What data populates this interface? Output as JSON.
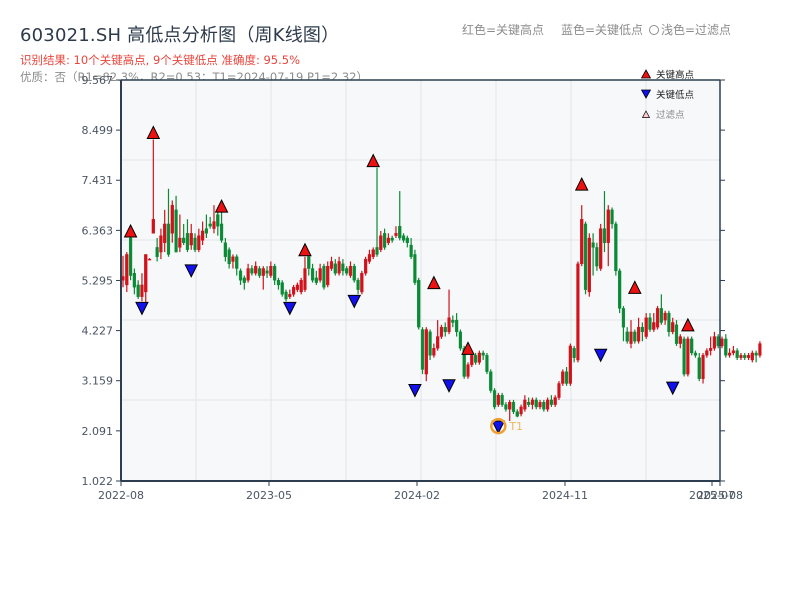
{
  "header": {
    "title": "603021.SH 高低点分析图（周K线图）",
    "result_line": "识别结果: 10个关键高点, 9个关键低点  准确度: 95.5%",
    "quality_line": "优质：否（R1=82.3%，R2=0.53；T1=2024-07-19 P1=2.32）",
    "legend_red": "红色=关键高点",
    "legend_blue": "蓝色=关键低点",
    "legend_light": "浅色=过滤点"
  },
  "legend": {
    "items": [
      {
        "label": "关键高点",
        "marker": "triangle-up",
        "color": "#ee1111"
      },
      {
        "label": "关键低点",
        "marker": "triangle-down",
        "color": "#1111ee"
      },
      {
        "label": "过滤点",
        "marker": "triangle-up-light",
        "color": "#ffcccc"
      }
    ]
  },
  "colors": {
    "up": "#d0121b",
    "down": "#0a8a35",
    "high_marker": "#ee1111",
    "low_marker": "#1111ee",
    "t1_circle": "#f0a030",
    "axis": "#2d3e50",
    "grid": "#e2e5ea",
    "plot_bg": "#f7f8fa"
  },
  "chart_data": {
    "type": "candlestick",
    "title": "603021.SH 高低点分析图（周K线图）",
    "xlabel": "",
    "ylabel": "",
    "ylim": [
      1.022,
      9.567
    ],
    "yticks": [
      "9.567",
      "8.499",
      "7.431",
      "6.363",
      "5.295",
      "4.227",
      "3.159",
      "2.091",
      "1.022"
    ],
    "xticks": [
      {
        "label": "2022-08",
        "week": 0
      },
      {
        "label": "2023-05",
        "week": 39
      },
      {
        "label": "2024-02",
        "week": 78
      },
      {
        "label": "2024-11",
        "week": 117
      },
      {
        "label": "2025-07",
        "week": 156
      },
      {
        "label": "2025-08",
        "week": 158
      }
    ],
    "grid": true,
    "legend_position": "upper right",
    "candles": [
      [
        5.3,
        5.38,
        5.82,
        5.15
      ],
      [
        5.2,
        5.85,
        5.9,
        5.05
      ],
      [
        6.2,
        5.4,
        6.3,
        5.3
      ],
      [
        5.45,
        5.15,
        5.55,
        5.0
      ],
      [
        5.2,
        4.95,
        5.3,
        4.9
      ],
      [
        4.95,
        5.2,
        5.45,
        4.85
      ],
      [
        5.05,
        5.85,
        5.85,
        4.8
      ],
      [
        5.75,
        5.75,
        5.77,
        5.73
      ],
      [
        6.3,
        6.6,
        8.3,
        6.3
      ],
      [
        6.0,
        5.8,
        6.2,
        5.7
      ],
      [
        5.9,
        6.25,
        6.4,
        5.75
      ],
      [
        6.1,
        6.5,
        6.8,
        5.9
      ],
      [
        6.5,
        5.85,
        7.25,
        5.8
      ],
      [
        6.3,
        6.9,
        7.0,
        6.1
      ],
      [
        6.8,
        5.9,
        7.1,
        5.9
      ],
      [
        6.0,
        6.2,
        6.7,
        5.9
      ],
      [
        6.2,
        6.1,
        6.5,
        6.05
      ],
      [
        6.3,
        5.95,
        6.6,
        5.9
      ],
      [
        6.05,
        6.3,
        6.5,
        5.95
      ],
      [
        6.2,
        5.95,
        6.3,
        5.9
      ],
      [
        5.95,
        6.25,
        6.4,
        5.9
      ],
      [
        6.15,
        6.35,
        6.55,
        6.05
      ],
      [
        6.4,
        6.3,
        6.7,
        6.2
      ],
      [
        6.5,
        6.45,
        6.65,
        6.4
      ],
      [
        6.4,
        6.55,
        6.9,
        6.3
      ],
      [
        6.7,
        6.45,
        6.85,
        6.25
      ],
      [
        6.5,
        6.15,
        6.75,
        6.1
      ],
      [
        6.1,
        5.8,
        6.2,
        5.7
      ],
      [
        5.95,
        5.65,
        6.0,
        5.55
      ],
      [
        5.7,
        5.8,
        5.85,
        5.55
      ],
      [
        5.8,
        5.55,
        5.85,
        5.4
      ],
      [
        5.5,
        5.3,
        5.55,
        5.2
      ],
      [
        5.35,
        5.25,
        5.4,
        5.1
      ],
      [
        5.3,
        5.55,
        5.65,
        5.25
      ],
      [
        5.55,
        5.45,
        5.62,
        5.4
      ],
      [
        5.45,
        5.6,
        5.7,
        5.4
      ],
      [
        5.55,
        5.4,
        5.6,
        5.35
      ],
      [
        5.4,
        5.55,
        5.6,
        5.1
      ],
      [
        5.5,
        5.45,
        5.6,
        5.35
      ],
      [
        5.4,
        5.6,
        5.7,
        5.35
      ],
      [
        5.6,
        5.3,
        5.65,
        5.2
      ],
      [
        5.3,
        5.2,
        5.35,
        5.1
      ],
      [
        5.25,
        5.0,
        5.3,
        4.95
      ],
      [
        5.05,
        4.9,
        5.1,
        4.85
      ],
      [
        4.95,
        5.0,
        5.1,
        4.9
      ],
      [
        5.0,
        5.15,
        5.2,
        4.95
      ],
      [
        5.1,
        5.2,
        5.25,
        5.05
      ],
      [
        5.05,
        5.3,
        5.35,
        5.0
      ],
      [
        5.1,
        5.55,
        5.8,
        5.05
      ],
      [
        5.8,
        5.55,
        5.9,
        5.4
      ],
      [
        5.55,
        5.3,
        5.65,
        5.25
      ],
      [
        5.35,
        5.25,
        5.5,
        5.2
      ],
      [
        5.3,
        5.55,
        5.65,
        5.25
      ],
      [
        5.6,
        5.15,
        5.65,
        5.1
      ],
      [
        5.2,
        5.6,
        5.7,
        5.15
      ],
      [
        5.55,
        5.7,
        5.8,
        5.5
      ],
      [
        5.65,
        5.45,
        5.75,
        5.4
      ],
      [
        5.45,
        5.7,
        5.8,
        5.4
      ],
      [
        5.65,
        5.5,
        5.75,
        5.4
      ],
      [
        5.55,
        5.45,
        5.6,
        5.4
      ],
      [
        5.4,
        5.6,
        5.7,
        5.35
      ],
      [
        5.6,
        5.3,
        5.65,
        5.25
      ],
      [
        5.3,
        5.1,
        5.35,
        5.0
      ],
      [
        5.05,
        5.45,
        5.5,
        5.0
      ],
      [
        5.45,
        5.75,
        5.8,
        5.4
      ],
      [
        5.7,
        5.85,
        5.95,
        5.65
      ],
      [
        5.8,
        5.95,
        6.0,
        5.75
      ],
      [
        6.0,
        5.85,
        7.7,
        5.8
      ],
      [
        5.95,
        6.25,
        6.35,
        5.9
      ],
      [
        6.3,
        6.0,
        6.4,
        5.95
      ],
      [
        6.1,
        6.2,
        6.3,
        6.05
      ],
      [
        6.2,
        6.15,
        6.25,
        6.1
      ],
      [
        6.25,
        6.3,
        6.45,
        6.2
      ],
      [
        6.45,
        6.2,
        7.2,
        6.15
      ],
      [
        6.25,
        6.15,
        6.3,
        6.1
      ],
      [
        6.2,
        6.1,
        6.25,
        6.0
      ],
      [
        6.05,
        5.8,
        6.2,
        5.75
      ],
      [
        5.85,
        5.25,
        5.95,
        5.2
      ],
      [
        5.3,
        4.3,
        5.35,
        4.25
      ],
      [
        4.25,
        3.4,
        4.3,
        3.3
      ],
      [
        3.3,
        4.25,
        4.3,
        3.15
      ],
      [
        4.2,
        3.7,
        4.25,
        3.6
      ],
      [
        3.7,
        3.85,
        3.95,
        3.65
      ],
      [
        3.85,
        4.1,
        4.45,
        3.8
      ],
      [
        4.1,
        4.3,
        4.35,
        4.05
      ],
      [
        4.3,
        4.2,
        4.4,
        4.1
      ],
      [
        4.2,
        4.5,
        5.1,
        4.15
      ],
      [
        4.45,
        4.4,
        4.55,
        4.3
      ],
      [
        4.45,
        4.2,
        4.6,
        4.1
      ],
      [
        4.2,
        3.85,
        4.25,
        3.8
      ],
      [
        3.85,
        3.25,
        3.9,
        3.2
      ],
      [
        3.25,
        3.5,
        3.55,
        3.2
      ],
      [
        3.5,
        3.7,
        3.8,
        3.45
      ],
      [
        3.7,
        3.55,
        3.75,
        3.5
      ],
      [
        3.55,
        3.75,
        3.8,
        3.5
      ],
      [
        3.75,
        3.7,
        3.8,
        3.6
      ],
      [
        3.7,
        3.35,
        3.75,
        3.3
      ],
      [
        3.35,
        2.95,
        3.4,
        2.9
      ],
      [
        2.95,
        2.6,
        3.0,
        2.55
      ],
      [
        2.65,
        2.85,
        2.9,
        2.6
      ],
      [
        2.85,
        2.65,
        2.9,
        2.6
      ],
      [
        2.65,
        2.55,
        2.7,
        2.5
      ],
      [
        2.55,
        2.7,
        2.75,
        2.3
      ],
      [
        2.7,
        2.5,
        2.75,
        2.45
      ],
      [
        2.5,
        2.4,
        2.55,
        2.38
      ],
      [
        2.45,
        2.6,
        2.65,
        2.4
      ],
      [
        2.55,
        2.75,
        2.85,
        2.5
      ],
      [
        2.7,
        2.65,
        2.8,
        2.6
      ],
      [
        2.65,
        2.75,
        2.8,
        2.55
      ],
      [
        2.75,
        2.6,
        2.8,
        2.55
      ],
      [
        2.6,
        2.7,
        2.75,
        2.55
      ],
      [
        2.7,
        2.55,
        2.75,
        2.5
      ],
      [
        2.55,
        2.75,
        2.8,
        2.5
      ],
      [
        2.75,
        2.65,
        2.85,
        2.6
      ],
      [
        2.65,
        2.8,
        2.85,
        2.6
      ],
      [
        2.8,
        3.1,
        3.15,
        2.75
      ],
      [
        3.1,
        3.35,
        3.4,
        3.05
      ],
      [
        3.35,
        3.1,
        3.45,
        3.05
      ],
      [
        3.1,
        3.9,
        3.95,
        3.05
      ],
      [
        3.85,
        3.65,
        3.9,
        3.55
      ],
      [
        3.6,
        5.65,
        5.7,
        3.55
      ],
      [
        5.65,
        6.6,
        6.9,
        5.6
      ],
      [
        6.5,
        5.1,
        6.55,
        5.0
      ],
      [
        5.05,
        6.2,
        6.3,
        4.95
      ],
      [
        6.1,
        6.0,
        6.3,
        5.4
      ],
      [
        6.0,
        5.6,
        6.1,
        5.5
      ],
      [
        5.55,
        6.4,
        6.5,
        5.5
      ],
      [
        6.4,
        6.1,
        7.2,
        5.9
      ],
      [
        6.1,
        6.8,
        6.9,
        5.6
      ],
      [
        6.8,
        6.5,
        6.85,
        6.4
      ],
      [
        6.5,
        5.5,
        6.55,
        5.4
      ],
      [
        5.5,
        4.7,
        5.55,
        4.6
      ],
      [
        4.7,
        4.3,
        4.75,
        4.0
      ],
      [
        4.2,
        4.0,
        4.3,
        3.95
      ],
      [
        3.95,
        4.2,
        4.45,
        3.85
      ],
      [
        4.2,
        4.0,
        4.25,
        3.95
      ],
      [
        4.0,
        4.3,
        4.5,
        3.95
      ],
      [
        4.3,
        4.2,
        4.4,
        4.0
      ],
      [
        4.1,
        4.5,
        4.6,
        4.05
      ],
      [
        4.5,
        4.25,
        4.6,
        4.2
      ],
      [
        4.25,
        4.4,
        4.6,
        4.2
      ],
      [
        4.3,
        4.7,
        4.75,
        4.25
      ],
      [
        4.7,
        4.4,
        5.0,
        4.35
      ],
      [
        4.45,
        4.6,
        4.65,
        4.35
      ],
      [
        4.6,
        4.2,
        4.65,
        4.1
      ],
      [
        4.2,
        4.4,
        4.5,
        4.15
      ],
      [
        4.35,
        3.95,
        4.45,
        3.9
      ],
      [
        3.95,
        4.1,
        4.15,
        3.85
      ],
      [
        4.05,
        3.3,
        4.1,
        3.25
      ],
      [
        3.3,
        4.05,
        4.1,
        3.25
      ],
      [
        4.05,
        3.75,
        4.1,
        3.7
      ],
      [
        3.75,
        3.7,
        3.8,
        3.65
      ],
      [
        3.65,
        3.2,
        3.75,
        3.15
      ],
      [
        3.2,
        3.7,
        3.75,
        3.1
      ],
      [
        3.7,
        3.8,
        3.85,
        3.65
      ],
      [
        3.8,
        3.85,
        4.1,
        3.7
      ],
      [
        3.85,
        4.1,
        4.2,
        3.8
      ],
      [
        4.1,
        3.9,
        4.15,
        3.85
      ],
      [
        3.9,
        4.05,
        4.1,
        3.85
      ],
      [
        4.05,
        3.7,
        4.15,
        3.65
      ],
      [
        3.7,
        3.75,
        3.85,
        3.65
      ],
      [
        3.75,
        3.8,
        3.9,
        3.7
      ],
      [
        3.8,
        3.65,
        3.85,
        3.6
      ],
      [
        3.65,
        3.7,
        3.75,
        3.6
      ],
      [
        3.7,
        3.65,
        3.75,
        3.6
      ],
      [
        3.65,
        3.7,
        3.75,
        3.6
      ],
      [
        3.6,
        3.75,
        3.8,
        3.55
      ],
      [
        3.75,
        3.7,
        3.8,
        3.55
      ],
      [
        3.7,
        3.95,
        4.0,
        3.65
      ]
    ],
    "key_highs": [
      {
        "week": 2,
        "price": 6.2
      },
      {
        "week": 8,
        "price": 8.3
      },
      {
        "week": 26,
        "price": 6.73
      },
      {
        "week": 48,
        "price": 5.8
      },
      {
        "week": 66,
        "price": 7.7
      },
      {
        "week": 82,
        "price": 5.1
      },
      {
        "week": 91,
        "price": 3.7
      },
      {
        "week": 121,
        "price": 7.2
      },
      {
        "week": 135,
        "price": 5.0
      },
      {
        "week": 149,
        "price": 4.2
      }
    ],
    "key_lows": [
      {
        "week": 5,
        "price": 4.85
      },
      {
        "week": 18,
        "price": 5.65
      },
      {
        "week": 44,
        "price": 4.85
      },
      {
        "week": 61,
        "price": 5.0
      },
      {
        "week": 77,
        "price": 3.1
      },
      {
        "week": 86,
        "price": 3.2
      },
      {
        "week": 99,
        "price": 2.32
      },
      {
        "week": 126,
        "price": 3.85
      },
      {
        "week": 145,
        "price": 3.15
      }
    ],
    "t1": {
      "label": "T1",
      "week": 99,
      "price": 2.32,
      "date": "2024-07-19"
    }
  }
}
